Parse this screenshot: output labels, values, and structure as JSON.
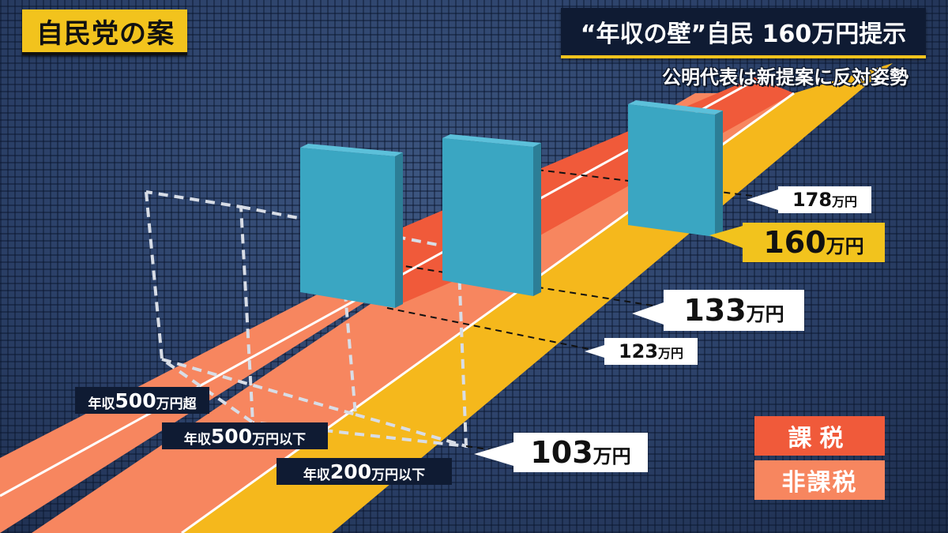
{
  "corner_label": "自民党の案",
  "headline": "“年収の壁”自民 160万円提示",
  "subheadline": "公明代表は新提案に反対姿勢",
  "thresholds": {
    "t178": {
      "num": "178",
      "unit": "万円"
    },
    "t160": {
      "num": "160",
      "unit": "万円"
    },
    "t133": {
      "num": "133",
      "unit": "万円"
    },
    "t123": {
      "num": "123",
      "unit": "万円"
    },
    "t103": {
      "num": "103",
      "unit": "万円"
    }
  },
  "income_bands": {
    "over500": {
      "prefix": "年収",
      "num": "500",
      "suffix": "万円超"
    },
    "under500": {
      "prefix": "年収",
      "num": "500",
      "suffix": "万円以下"
    },
    "under200": {
      "prefix": "年収",
      "num": "200",
      "suffix": "万円以下"
    }
  },
  "legend": {
    "taxed": "課税",
    "untaxed": "非課税"
  },
  "colors": {
    "taxed": "#f05a3a",
    "untaxed": "#f7865f",
    "yellow_band": "#f5b81c",
    "wall": "#3aa6c2",
    "background": "#2a3f63"
  }
}
